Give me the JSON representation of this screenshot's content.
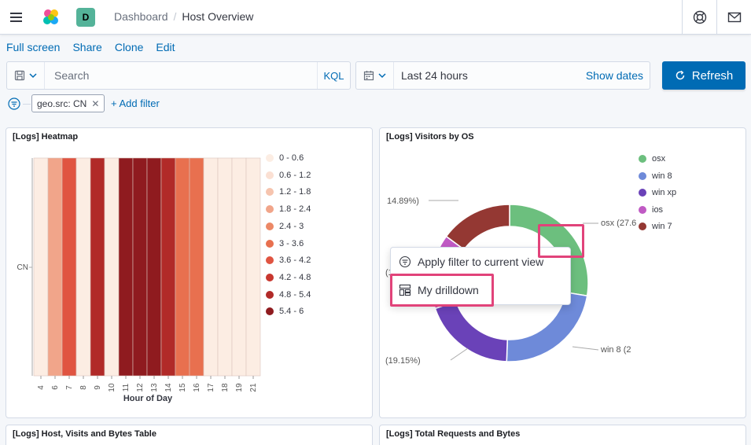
{
  "header": {
    "avatar_letter": "D",
    "breadcrumb": [
      "Dashboard",
      "Host Overview"
    ]
  },
  "topnav": [
    "Full screen",
    "Share",
    "Clone",
    "Edit"
  ],
  "query": {
    "search_placeholder": "Search",
    "language": "KQL",
    "time_range": "Last 24 hours",
    "show_dates": "Show dates",
    "refresh_label": "Refresh"
  },
  "filters": {
    "pills": [
      {
        "label": "geo.src: CN"
      }
    ],
    "add_label": "+ Add filter"
  },
  "panels": {
    "heatmap_title": "[Logs] Heatmap",
    "visitors_title": "[Logs] Visitors by OS",
    "table_title": "[Logs] Host, Visits and Bytes Table",
    "requests_title": "[Logs] Total Requests and Bytes"
  },
  "chart_data": [
    {
      "type": "heatmap",
      "title": "[Logs] Heatmap",
      "xlabel": "Hour of Day",
      "ylabel": "",
      "y_categories": [
        "CN"
      ],
      "x": [
        4,
        6,
        7,
        8,
        9,
        10,
        11,
        12,
        13,
        14,
        15,
        16,
        17,
        18,
        19,
        21
      ],
      "values": [
        0.5,
        1.8,
        4.0,
        0.5,
        5.0,
        0.5,
        5.8,
        5.8,
        5.8,
        5.0,
        3.0,
        3.0,
        0.5,
        0.5,
        0.5,
        0.5
      ],
      "legend": [
        {
          "label": "0 - 0.6",
          "color": "#fcede3"
        },
        {
          "label": "0.6 - 1.2",
          "color": "#fbe0d3"
        },
        {
          "label": "1.2 - 1.8",
          "color": "#f6c4ae"
        },
        {
          "label": "1.8 - 2.4",
          "color": "#f1a58a"
        },
        {
          "label": "2.4 - 3",
          "color": "#ec8866"
        },
        {
          "label": "3 - 3.6",
          "color": "#e8704f"
        },
        {
          "label": "3.6 - 4.2",
          "color": "#e05441"
        },
        {
          "label": "4.2 - 4.8",
          "color": "#c8372f"
        },
        {
          "label": "4.8 - 5.4",
          "color": "#b12a28"
        },
        {
          "label": "5.4 - 6",
          "color": "#8f1b1f"
        }
      ]
    },
    {
      "type": "pie",
      "title": "[Logs] Visitors by OS",
      "donut": true,
      "categories": [
        "osx",
        "win 8",
        "win xp",
        "ios",
        "win 7"
      ],
      "values": [
        27.6,
        23.0,
        19.15,
        15.36,
        14.89
      ],
      "colors": [
        "#6cbf7e",
        "#6e8ad9",
        "#6a42b8",
        "#c05ac4",
        "#943833"
      ],
      "visible_labels": [
        "osx (27.6",
        "win 8 (2",
        "(19.15%)",
        "(1",
        "14.89%)"
      ]
    }
  ],
  "context_menu": {
    "items": [
      {
        "label": "Apply filter to current view"
      },
      {
        "label": "My drilldown"
      }
    ]
  }
}
